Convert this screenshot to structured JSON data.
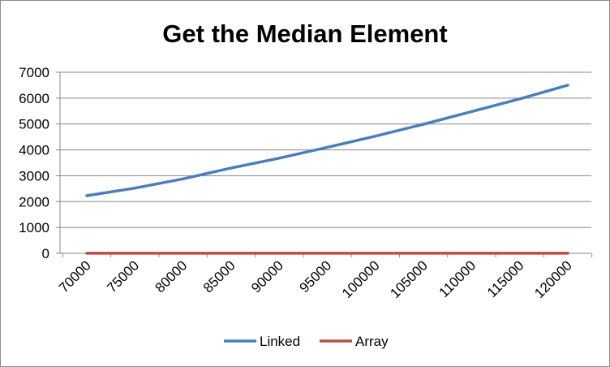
{
  "chart_data": {
    "type": "line",
    "title": "Get the Median Element",
    "xlabel": "",
    "ylabel": "",
    "x": [
      70000,
      75000,
      80000,
      85000,
      90000,
      95000,
      100000,
      105000,
      110000,
      115000,
      120000
    ],
    "x_tick_labels": [
      "70000",
      "75000",
      "80000",
      "85000",
      "90000",
      "95000",
      "100000",
      "105000",
      "110000",
      "115000",
      "120000"
    ],
    "y_tick_labels": [
      "0",
      "1000",
      "2000",
      "3000",
      "4000",
      "5000",
      "6000",
      "7000"
    ],
    "ylim": [
      0,
      7000
    ],
    "grid": "horizontal major gridlines",
    "legend_position": "bottom",
    "series": [
      {
        "name": "Linked",
        "color": "#4a7ebb",
        "values": [
          2230,
          2520,
          2880,
          3300,
          3680,
          4100,
          4530,
          4990,
          5480,
          5970,
          6500
        ]
      },
      {
        "name": "Array",
        "color": "#be4b48",
        "values": [
          2,
          2,
          2,
          2,
          2,
          2,
          2,
          2,
          2,
          2,
          2
        ]
      }
    ]
  }
}
